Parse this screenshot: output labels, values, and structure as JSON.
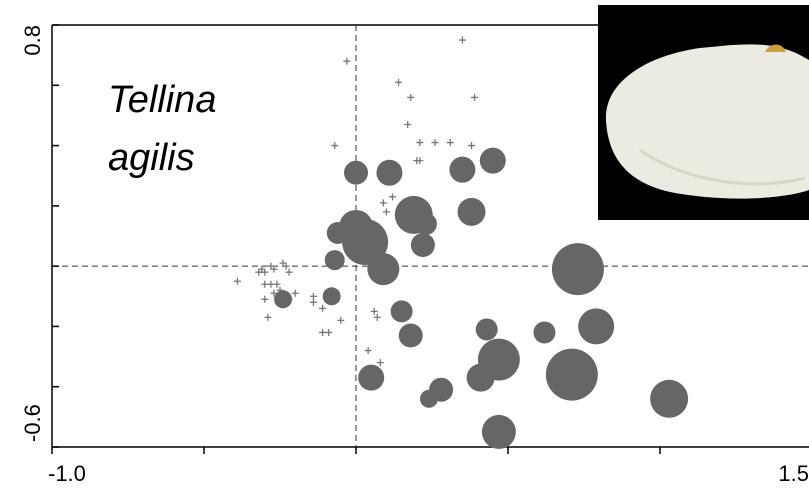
{
  "chart_data": {
    "type": "scatter",
    "annotation": [
      "Tellina",
      "agilis"
    ],
    "xlim": [
      -1.0,
      1.5
    ],
    "ylim": [
      -0.6,
      0.8
    ],
    "xticks": [
      {
        "value": -1.0,
        "label": "-1.0"
      },
      1.5
    ],
    "yticks": [
      0.8,
      -0.6
    ],
    "xminorticks": [
      -0.5,
      0,
      0.5,
      1.0
    ],
    "yminorticks": [
      0.6,
      0.4,
      0.2,
      0,
      -0.2,
      -0.4
    ],
    "vline": 0,
    "hline": 0,
    "series": [
      {
        "marker": "plus",
        "color": "#777777",
        "x": [
          0.35,
          -0.03,
          0.14,
          0.18,
          0.39,
          0.17,
          -0.07,
          0.21,
          0.26,
          0.31,
          0.38,
          0.2,
          0.21,
          0.08,
          0.09,
          0.12,
          0.1,
          -0.39,
          -0.32,
          -0.31,
          -0.3,
          -0.28,
          -0.27,
          -0.24,
          -0.23,
          -0.22,
          -0.3,
          -0.28,
          -0.26,
          -0.25,
          -0.3,
          -0.27,
          -0.29,
          -0.2,
          -0.14,
          -0.14,
          -0.11,
          -0.11,
          -0.09,
          -0.05,
          0.06,
          0.07,
          0.04,
          0.08,
          -0.22
        ],
        "y": [
          0.75,
          0.68,
          0.61,
          0.56,
          0.56,
          0.47,
          0.4,
          0.41,
          0.41,
          0.41,
          0.4,
          0.35,
          0.35,
          0.3,
          0.21,
          0.23,
          0.18,
          -0.05,
          -0.02,
          -0.01,
          -0.02,
          0.0,
          -0.01,
          0.01,
          0.0,
          -0.02,
          -0.06,
          -0.06,
          -0.06,
          -0.08,
          -0.11,
          -0.09,
          -0.17,
          -0.09,
          -0.1,
          -0.12,
          -0.14,
          -0.22,
          -0.22,
          -0.18,
          -0.15,
          -0.17,
          -0.28,
          -0.32,
          -0.11
        ]
      },
      {
        "marker": "circle",
        "color": "#666666",
        "x": [
          0.0,
          0.11,
          0.35,
          0.45,
          0.19,
          0.38,
          -0.06,
          0.0,
          0.03,
          0.23,
          0.22,
          -0.07,
          0.09,
          0.73,
          -0.24,
          -0.08,
          0.15,
          0.18,
          0.43,
          0.62,
          0.79,
          0.47,
          0.41,
          0.05,
          0.71,
          0.28,
          0.24,
          1.03,
          0.47
        ],
        "y": [
          0.31,
          0.31,
          0.32,
          0.35,
          0.17,
          0.18,
          0.11,
          0.13,
          0.08,
          0.14,
          0.07,
          0.02,
          -0.01,
          -0.01,
          -0.11,
          -0.1,
          -0.15,
          -0.23,
          -0.21,
          -0.22,
          -0.2,
          -0.31,
          -0.37,
          -0.37,
          -0.36,
          -0.41,
          -0.44,
          -0.44,
          -0.55
        ],
        "sizes": [
          12,
          13,
          13,
          13,
          19,
          14,
          11,
          17,
          23,
          11,
          12,
          10,
          16,
          26,
          9,
          9,
          11,
          12,
          11,
          11,
          18,
          21,
          14,
          13,
          26,
          12,
          9,
          19,
          17
        ]
      }
    ]
  }
}
